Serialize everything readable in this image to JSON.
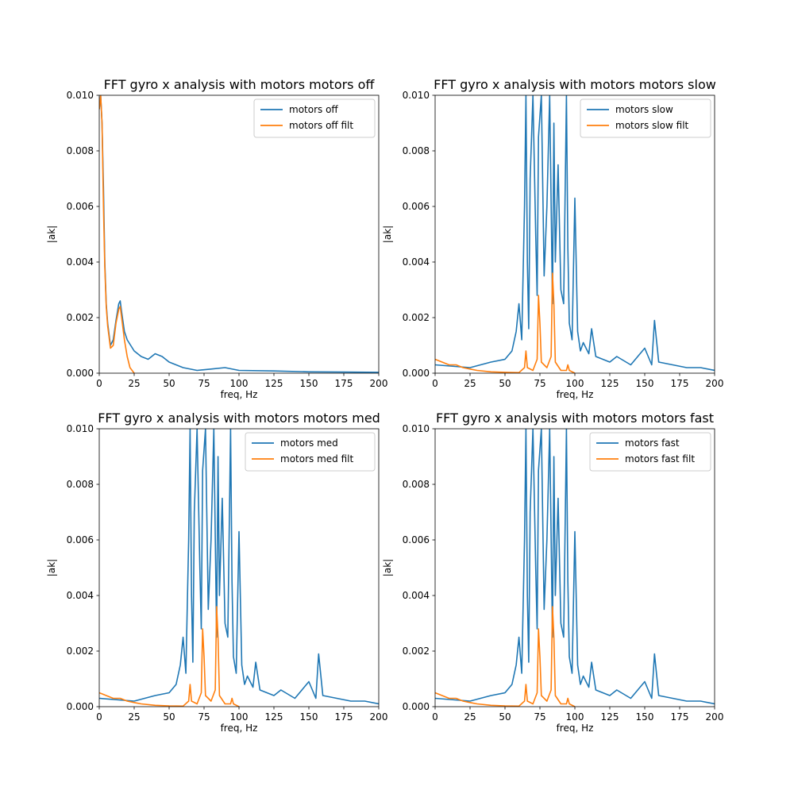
{
  "colors": {
    "series_1": "#1f77b4",
    "series_2": "#ff7f0e"
  },
  "chart_data": [
    {
      "type": "line",
      "title": "FFT gyro x analysis with motors motors off",
      "xlabel": "freq, Hz",
      "ylabel": "|ak|",
      "xlim": [
        0,
        200
      ],
      "ylim": [
        0,
        0.01
      ],
      "xticks": [
        "0",
        "25",
        "50",
        "75",
        "100",
        "125",
        "150",
        "175",
        "200"
      ],
      "yticks": [
        "0.000",
        "0.002",
        "0.004",
        "0.006",
        "0.008",
        "0.010"
      ],
      "legend_position": "top-right",
      "grid": false,
      "series": [
        {
          "name": "motors off",
          "color": "#1f77b4",
          "x": [
            0,
            1,
            2,
            3,
            4,
            5,
            6,
            8,
            10,
            12,
            14,
            15,
            16,
            18,
            20,
            25,
            30,
            35,
            40,
            45,
            50,
            60,
            70,
            80,
            90,
            100,
            125,
            150,
            175,
            200
          ],
          "y": [
            0.0095,
            0.01,
            0.009,
            0.0067,
            0.004,
            0.0025,
            0.0018,
            0.001,
            0.0012,
            0.0019,
            0.0025,
            0.0026,
            0.0022,
            0.0015,
            0.0012,
            0.0008,
            0.0006,
            0.0005,
            0.0007,
            0.0006,
            0.0004,
            0.0002,
            0.0001,
            0.00015,
            0.0002,
            0.0001,
            8e-05,
            5e-05,
            4e-05,
            3e-05
          ]
        },
        {
          "name": "motors off filt",
          "color": "#ff7f0e",
          "x": [
            0,
            1,
            2,
            3,
            4,
            5,
            6,
            8,
            10,
            12,
            14,
            15,
            16,
            18,
            20,
            22,
            25
          ],
          "y": [
            0.0095,
            0.01,
            0.009,
            0.006,
            0.0038,
            0.0024,
            0.0017,
            0.0009,
            0.001,
            0.0018,
            0.0023,
            0.0024,
            0.002,
            0.0012,
            0.0006,
            0.0002,
            0.0
          ]
        }
      ]
    },
    {
      "type": "line",
      "title": "FFT gyro x analysis with motors motors slow",
      "xlabel": "freq, Hz",
      "ylabel": "|ak|",
      "xlim": [
        0,
        200
      ],
      "ylim": [
        0,
        0.01
      ],
      "xticks": [
        "0",
        "25",
        "50",
        "75",
        "100",
        "125",
        "150",
        "175",
        "200"
      ],
      "yticks": [
        "0.000",
        "0.002",
        "0.004",
        "0.006",
        "0.008",
        "0.010"
      ],
      "legend_position": "top-right",
      "grid": false,
      "series": [
        {
          "name": "motors slow",
          "color": "#1f77b4",
          "x": [
            0,
            25,
            40,
            50,
            55,
            58,
            60,
            62,
            64,
            65,
            66,
            67,
            68,
            70,
            72,
            73,
            74,
            76,
            78,
            80,
            82,
            84,
            85,
            86,
            88,
            90,
            92,
            94,
            95,
            96,
            98,
            100,
            102,
            104,
            106,
            110,
            112,
            115,
            120,
            125,
            130,
            140,
            150,
            155,
            157,
            160,
            170,
            180,
            190,
            200
          ],
          "y": [
            0.0003,
            0.0002,
            0.0004,
            0.0005,
            0.0008,
            0.0015,
            0.0025,
            0.0012,
            0.006,
            0.01,
            0.004,
            0.0016,
            0.007,
            0.01,
            0.005,
            0.0028,
            0.0085,
            0.01,
            0.0035,
            0.006,
            0.01,
            0.0025,
            0.009,
            0.004,
            0.0075,
            0.003,
            0.0025,
            0.01,
            0.0045,
            0.0018,
            0.0012,
            0.0063,
            0.0015,
            0.0008,
            0.0011,
            0.0007,
            0.0016,
            0.0006,
            0.0005,
            0.0004,
            0.0006,
            0.0003,
            0.0009,
            0.0003,
            0.0019,
            0.0004,
            0.0003,
            0.0002,
            0.0002,
            0.0001
          ]
        },
        {
          "name": "motors slow filt",
          "color": "#ff7f0e",
          "x": [
            0,
            5,
            10,
            15,
            20,
            25,
            30,
            40,
            50,
            60,
            64,
            65,
            66,
            70,
            73,
            74,
            75,
            76,
            80,
            83,
            84,
            85,
            86,
            90,
            94,
            95,
            96,
            100
          ],
          "y": [
            0.0005,
            0.0004,
            0.0003,
            0.0003,
            0.0002,
            0.00015,
            0.0001,
            5e-05,
            3e-05,
            2e-05,
            0.0002,
            0.0008,
            0.0002,
            0.0001,
            0.0005,
            0.0028,
            0.0018,
            0.0004,
            0.0002,
            0.0006,
            0.0036,
            0.0025,
            0.0004,
            0.0001,
            0.0001,
            0.0003,
            0.0001,
            0.0
          ]
        }
      ]
    },
    {
      "type": "line",
      "title": "FFT gyro x analysis with motors motors med",
      "xlabel": "freq, Hz",
      "ylabel": "|ak|",
      "xlim": [
        0,
        200
      ],
      "ylim": [
        0,
        0.01
      ],
      "xticks": [
        "0",
        "25",
        "50",
        "75",
        "100",
        "125",
        "150",
        "175",
        "200"
      ],
      "yticks": [
        "0.000",
        "0.002",
        "0.004",
        "0.006",
        "0.008",
        "0.010"
      ],
      "legend_position": "top-right",
      "grid": false,
      "series": [
        {
          "name": "motors med",
          "color": "#1f77b4",
          "x": [
            0,
            25,
            40,
            50,
            55,
            58,
            60,
            62,
            64,
            65,
            66,
            67,
            68,
            70,
            72,
            73,
            74,
            76,
            78,
            80,
            82,
            84,
            85,
            86,
            88,
            90,
            92,
            94,
            95,
            96,
            98,
            100,
            102,
            104,
            106,
            110,
            112,
            115,
            120,
            125,
            130,
            140,
            150,
            155,
            157,
            160,
            170,
            180,
            190,
            200
          ],
          "y": [
            0.0003,
            0.0002,
            0.0004,
            0.0005,
            0.0008,
            0.0015,
            0.0025,
            0.0012,
            0.006,
            0.01,
            0.004,
            0.0016,
            0.007,
            0.01,
            0.005,
            0.0028,
            0.0085,
            0.01,
            0.0035,
            0.006,
            0.01,
            0.0025,
            0.009,
            0.004,
            0.0075,
            0.003,
            0.0025,
            0.01,
            0.0045,
            0.0018,
            0.0012,
            0.0063,
            0.0015,
            0.0008,
            0.0011,
            0.0007,
            0.0016,
            0.0006,
            0.0005,
            0.0004,
            0.0006,
            0.0003,
            0.0009,
            0.0003,
            0.0019,
            0.0004,
            0.0003,
            0.0002,
            0.0002,
            0.0001
          ]
        },
        {
          "name": "motors med filt",
          "color": "#ff7f0e",
          "x": [
            0,
            5,
            10,
            15,
            20,
            25,
            30,
            40,
            50,
            60,
            64,
            65,
            66,
            70,
            73,
            74,
            75,
            76,
            80,
            83,
            84,
            85,
            86,
            90,
            94,
            95,
            96,
            100
          ],
          "y": [
            0.0005,
            0.0004,
            0.0003,
            0.0003,
            0.0002,
            0.00015,
            0.0001,
            5e-05,
            3e-05,
            2e-05,
            0.0002,
            0.0008,
            0.0002,
            0.0001,
            0.0005,
            0.0028,
            0.0018,
            0.0004,
            0.0002,
            0.0006,
            0.0036,
            0.0025,
            0.0004,
            0.0001,
            0.0001,
            0.0003,
            0.0001,
            0.0
          ]
        }
      ]
    },
    {
      "type": "line",
      "title": "FFT gyro x analysis with motors motors fast",
      "xlabel": "freq, Hz",
      "ylabel": "|ak|",
      "xlim": [
        0,
        200
      ],
      "ylim": [
        0,
        0.01
      ],
      "xticks": [
        "0",
        "25",
        "50",
        "75",
        "100",
        "125",
        "150",
        "175",
        "200"
      ],
      "yticks": [
        "0.000",
        "0.002",
        "0.004",
        "0.006",
        "0.008",
        "0.010"
      ],
      "legend_position": "top-right",
      "grid": false,
      "series": [
        {
          "name": "motors fast",
          "color": "#1f77b4",
          "x": [
            0,
            25,
            40,
            50,
            55,
            58,
            60,
            62,
            64,
            65,
            66,
            67,
            68,
            70,
            72,
            73,
            74,
            76,
            78,
            80,
            82,
            84,
            85,
            86,
            88,
            90,
            92,
            94,
            95,
            96,
            98,
            100,
            102,
            104,
            106,
            110,
            112,
            115,
            120,
            125,
            130,
            140,
            150,
            155,
            157,
            160,
            170,
            180,
            190,
            200
          ],
          "y": [
            0.0003,
            0.0002,
            0.0004,
            0.0005,
            0.0008,
            0.0015,
            0.0025,
            0.0012,
            0.006,
            0.01,
            0.004,
            0.0016,
            0.007,
            0.01,
            0.005,
            0.0028,
            0.0085,
            0.01,
            0.0035,
            0.006,
            0.01,
            0.0025,
            0.009,
            0.004,
            0.0075,
            0.003,
            0.0025,
            0.01,
            0.0045,
            0.0018,
            0.0012,
            0.0063,
            0.0015,
            0.0008,
            0.0011,
            0.0007,
            0.0016,
            0.0006,
            0.0005,
            0.0004,
            0.0006,
            0.0003,
            0.0009,
            0.0003,
            0.0019,
            0.0004,
            0.0003,
            0.0002,
            0.0002,
            0.0001
          ]
        },
        {
          "name": "motors fast filt",
          "color": "#ff7f0e",
          "x": [
            0,
            5,
            10,
            15,
            20,
            25,
            30,
            40,
            50,
            60,
            64,
            65,
            66,
            70,
            73,
            74,
            75,
            76,
            80,
            83,
            84,
            85,
            86,
            90,
            94,
            95,
            96,
            100
          ],
          "y": [
            0.0005,
            0.0004,
            0.0003,
            0.0003,
            0.0002,
            0.00015,
            0.0001,
            5e-05,
            3e-05,
            2e-05,
            0.0002,
            0.0008,
            0.0002,
            0.0001,
            0.0005,
            0.0028,
            0.0018,
            0.0004,
            0.0002,
            0.0006,
            0.0036,
            0.0025,
            0.0004,
            0.0001,
            0.0001,
            0.0003,
            0.0001,
            0.0
          ]
        }
      ]
    }
  ]
}
